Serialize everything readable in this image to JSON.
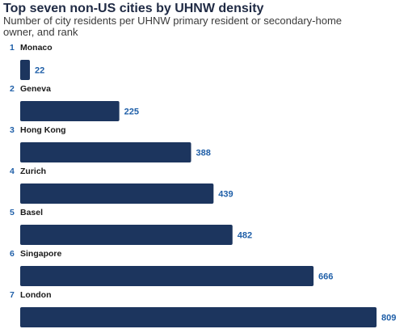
{
  "title": "Top seven non-US cities by UHNW density",
  "subtitle": "Number of city residents per UHNW primary resident or secondary-home owner, and rank",
  "colors": {
    "bar": "#1c355e",
    "value_label": "#1f5fa8",
    "rank": "#1f5fa8",
    "category": "#1a1a1a"
  },
  "chart_data": {
    "type": "bar",
    "orientation": "horizontal",
    "title": "Top seven non-US cities by UHNW density",
    "subtitle": "Number of city residents per UHNW primary resident or secondary-home owner, and rank",
    "ranks": [
      "1",
      "2",
      "3",
      "4",
      "5",
      "6",
      "7"
    ],
    "categories": [
      "Monaco",
      "Geneva",
      "Hong Kong",
      "Zurich",
      "Basel",
      "Singapore",
      "London"
    ],
    "values": [
      22,
      225,
      388,
      439,
      482,
      666,
      809
    ],
    "value_labels": [
      "22",
      "225",
      "388",
      "439",
      "482",
      "666",
      "809"
    ],
    "xlim": [
      0,
      809
    ],
    "grid": false,
    "legend": "none"
  }
}
